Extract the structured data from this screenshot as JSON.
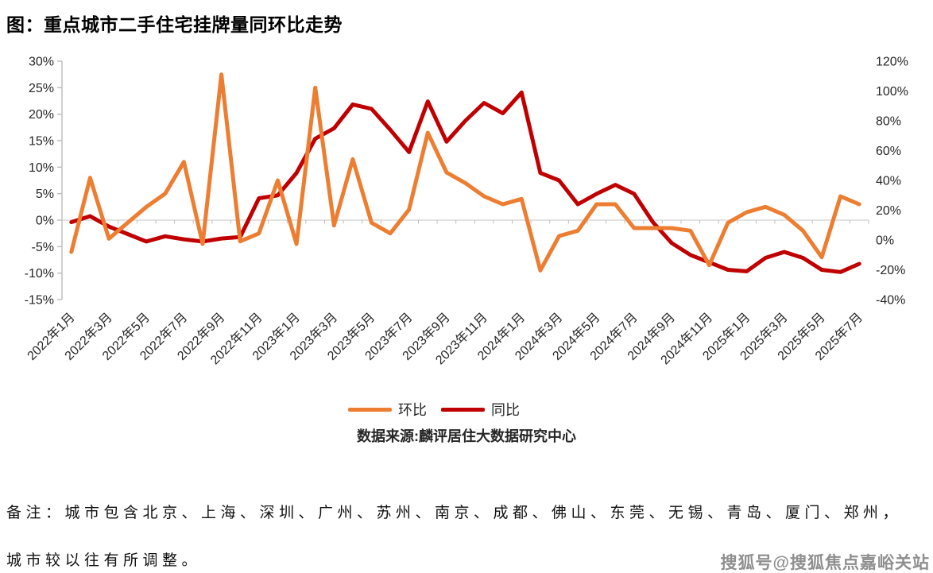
{
  "title": "图：重点城市二手住宅挂牌量同环比走势",
  "source": "数据来源:麟评居住大数据研究中心",
  "note_line1": "备注：城市包含北京、上海、深圳、广州、苏州、南京、成都、佛山、东莞、无锡、青岛、厦门、郑州，",
  "note_line2": "城市较以往有所调整。",
  "watermark": "搜狐号@搜狐焦点嘉峪关站",
  "chart_data": {
    "type": "line",
    "title": "重点城市二手住宅挂牌量同环比走势",
    "grid": "zero-line-only",
    "legend_position": "bottom",
    "categories": [
      "2022年1月",
      "2022年2月",
      "2022年3月",
      "2022年4月",
      "2022年5月",
      "2022年6月",
      "2022年7月",
      "2022年8月",
      "2022年9月",
      "2022年10月",
      "2022年11月",
      "2022年12月",
      "2023年1月",
      "2023年2月",
      "2023年3月",
      "2023年4月",
      "2023年5月",
      "2023年6月",
      "2023年7月",
      "2023年8月",
      "2023年9月",
      "2023年10月",
      "2023年11月",
      "2023年12月",
      "2024年1月",
      "2024年2月",
      "2024年3月",
      "2024年4月",
      "2024年5月",
      "2024年6月",
      "2024年7月",
      "2024年8月",
      "2024年9月",
      "2024年10月",
      "2024年11月",
      "2024年12月",
      "2025年1月",
      "2025年2月",
      "2025年3月",
      "2025年4月",
      "2025年5月",
      "2025年6月",
      "2025年7月"
    ],
    "x_tick_labels": [
      "2022年1月",
      "2022年3月",
      "2022年5月",
      "2022年7月",
      "2022年9月",
      "2022年11月",
      "2023年1月",
      "2023年3月",
      "2023年5月",
      "2023年7月",
      "2023年9月",
      "2023年11月",
      "2024年1月",
      "2024年3月",
      "2024年5月",
      "2024年7月",
      "2024年9月",
      "2024年11月",
      "2025年1月",
      "2025年3月",
      "2025年5月",
      "2025年7月"
    ],
    "series": [
      {
        "name": "环比",
        "axis": "left",
        "color": "#ED7D31",
        "unit": "%",
        "values": [
          -6,
          8,
          -3.5,
          -0.5,
          2.5,
          5,
          11,
          -4.5,
          27.5,
          -4,
          -2.5,
          7.5,
          -4.5,
          25,
          -1,
          11.5,
          -0.5,
          -2.5,
          2,
          16.5,
          9,
          7,
          4.5,
          3,
          4,
          -9.5,
          -3,
          -2,
          3,
          3,
          -1.5,
          -1.5,
          -1.5,
          -2,
          -8.5,
          -0.5,
          1.5,
          2.5,
          1,
          -2,
          -7,
          4.5,
          3
        ]
      },
      {
        "name": "同比",
        "axis": "right",
        "color": "#C00000",
        "unit": "%",
        "values": [
          12,
          16,
          9,
          4,
          -1,
          2.5,
          0.5,
          -1,
          1,
          2,
          28,
          30,
          45,
          68,
          75,
          91,
          88,
          74,
          59,
          93,
          66,
          80,
          92,
          85,
          99,
          45,
          40,
          24,
          31,
          37,
          31,
          12,
          -2,
          -10,
          -15,
          -20,
          -21,
          -12,
          -8,
          -12,
          -20,
          -21.5,
          -16
        ]
      }
    ],
    "left_axis": {
      "min": -15,
      "max": 30,
      "step": 5,
      "tick_labels": [
        "30%",
        "25%",
        "20%",
        "15%",
        "10%",
        "5%",
        "0%",
        "-5%",
        "-10%",
        "-15%"
      ]
    },
    "right_axis": {
      "min": -40,
      "max": 120,
      "step": 20,
      "tick_labels": [
        "120%",
        "100%",
        "80%",
        "60%",
        "40%",
        "20%",
        "0%",
        "-20%",
        "-40%"
      ]
    },
    "colors": {
      "gridline": "#D9D9D9",
      "axis": "#BFBFBF",
      "tick_text": "#262626"
    }
  }
}
